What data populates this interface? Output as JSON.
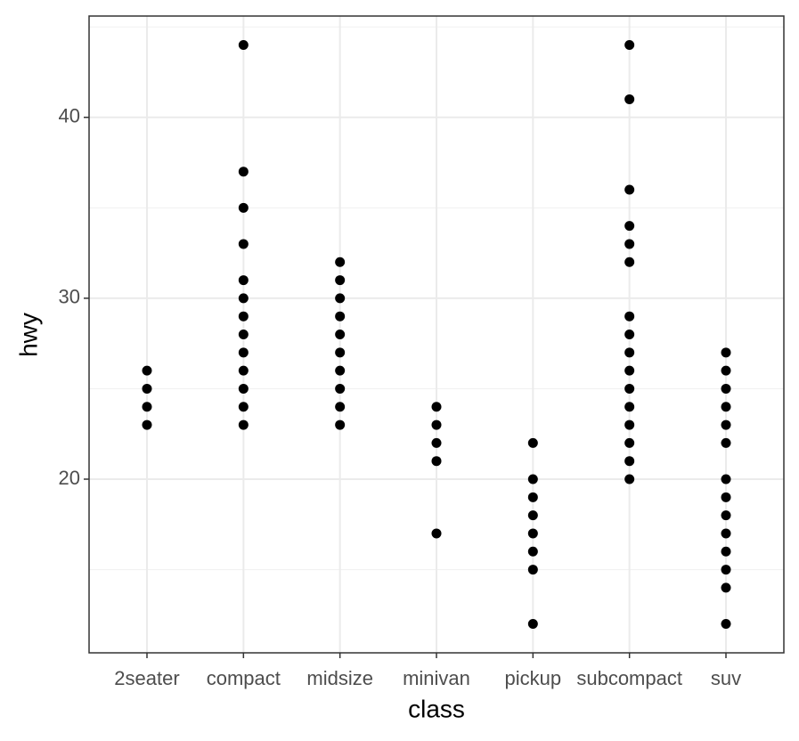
{
  "chart_data": {
    "type": "scatter",
    "xlabel": "class",
    "ylabel": "hwy",
    "categories": [
      "2seater",
      "compact",
      "midsize",
      "minivan",
      "pickup",
      "subcompact",
      "suv"
    ],
    "values": [
      [
        26,
        25,
        24,
        23
      ],
      [
        44,
        37,
        35,
        33,
        31,
        30,
        29,
        28,
        27,
        26,
        25,
        24,
        23
      ],
      [
        32,
        31,
        30,
        29,
        28,
        27,
        26,
        25,
        24,
        23
      ],
      [
        24,
        23,
        22,
        21,
        17
      ],
      [
        22,
        20,
        19,
        18,
        17,
        16,
        15,
        12
      ],
      [
        44,
        41,
        36,
        34,
        33,
        32,
        29,
        28,
        27,
        26,
        25,
        24,
        23,
        22,
        21,
        20
      ],
      [
        27,
        26,
        25,
        24,
        23,
        22,
        20,
        19,
        18,
        17,
        16,
        15,
        14,
        12
      ]
    ],
    "color": "#000000",
    "ylim": [
      10.4,
      45.6
    ],
    "yticks": [
      20,
      30,
      40
    ],
    "grid": true
  }
}
